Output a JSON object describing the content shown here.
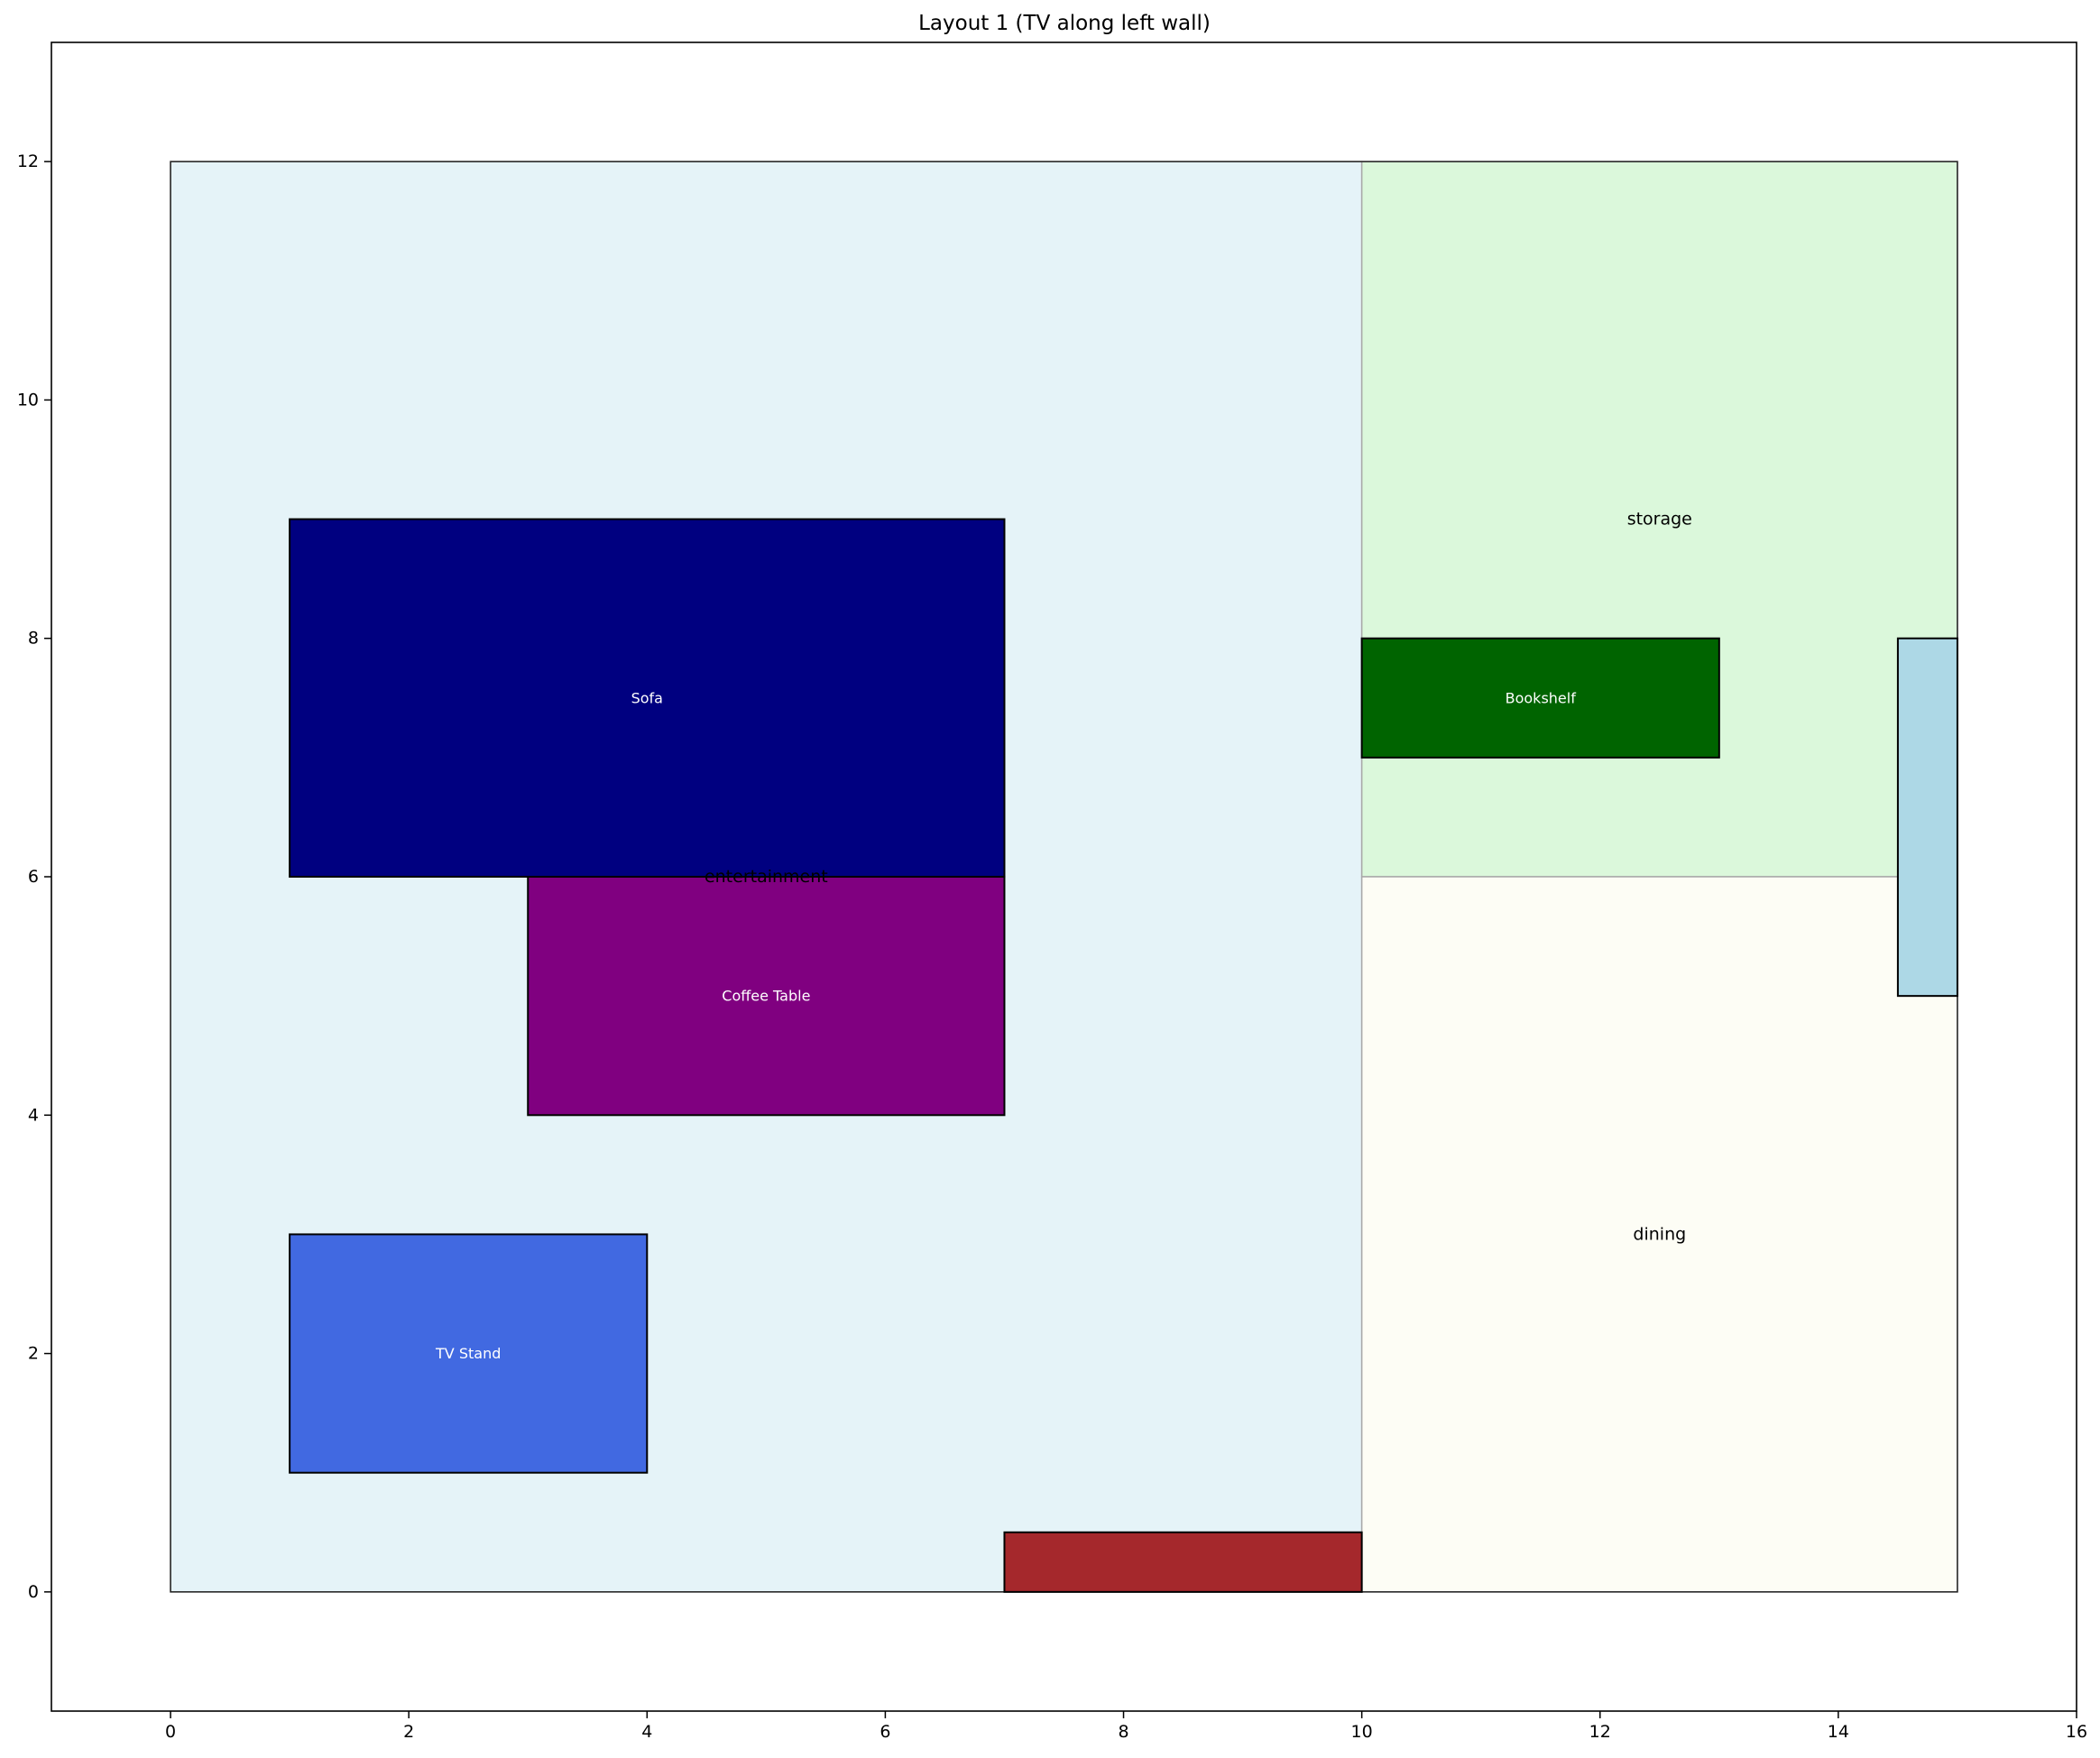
{
  "chart_data": {
    "type": "floor-plan",
    "title": "Layout 1 (TV along left wall)",
    "xlim": [
      -1,
      16
    ],
    "ylim": [
      -1,
      13
    ],
    "x_ticks": [
      0,
      2,
      4,
      6,
      8,
      10,
      12,
      14,
      16
    ],
    "y_ticks": [
      0,
      2,
      4,
      6,
      8,
      10,
      12
    ],
    "zones": [
      {
        "label": "entertainment",
        "x": 0,
        "y": 0,
        "w": 10,
        "h": 12,
        "fill": "#e5f3f8"
      },
      {
        "label": "storage",
        "x": 10,
        "y": 6,
        "w": 5,
        "h": 6,
        "fill": "#dbf8db"
      },
      {
        "label": "dining",
        "x": 10,
        "y": 0,
        "w": 5,
        "h": 6,
        "fill": "#fdfdf5"
      }
    ],
    "furniture": [
      {
        "label": "Sofa",
        "x": 1,
        "y": 6,
        "w": 6,
        "h": 3,
        "fill": "#000080"
      },
      {
        "label": "Coffee Table",
        "x": 3,
        "y": 4,
        "w": 4,
        "h": 2,
        "fill": "#800080"
      },
      {
        "label": "TV Stand",
        "x": 1,
        "y": 1,
        "w": 3,
        "h": 2,
        "fill": "#4169e1"
      },
      {
        "label": "Bookshelf",
        "x": 10,
        "y": 7,
        "w": 3,
        "h": 1,
        "fill": "#006400"
      },
      {
        "label": "",
        "x": 7,
        "y": 0,
        "w": 3,
        "h": 0.5,
        "fill": "#a5282c"
      },
      {
        "label": "",
        "x": 14.5,
        "y": 5,
        "w": 0.5,
        "h": 3,
        "fill": "#add8e6"
      }
    ]
  }
}
